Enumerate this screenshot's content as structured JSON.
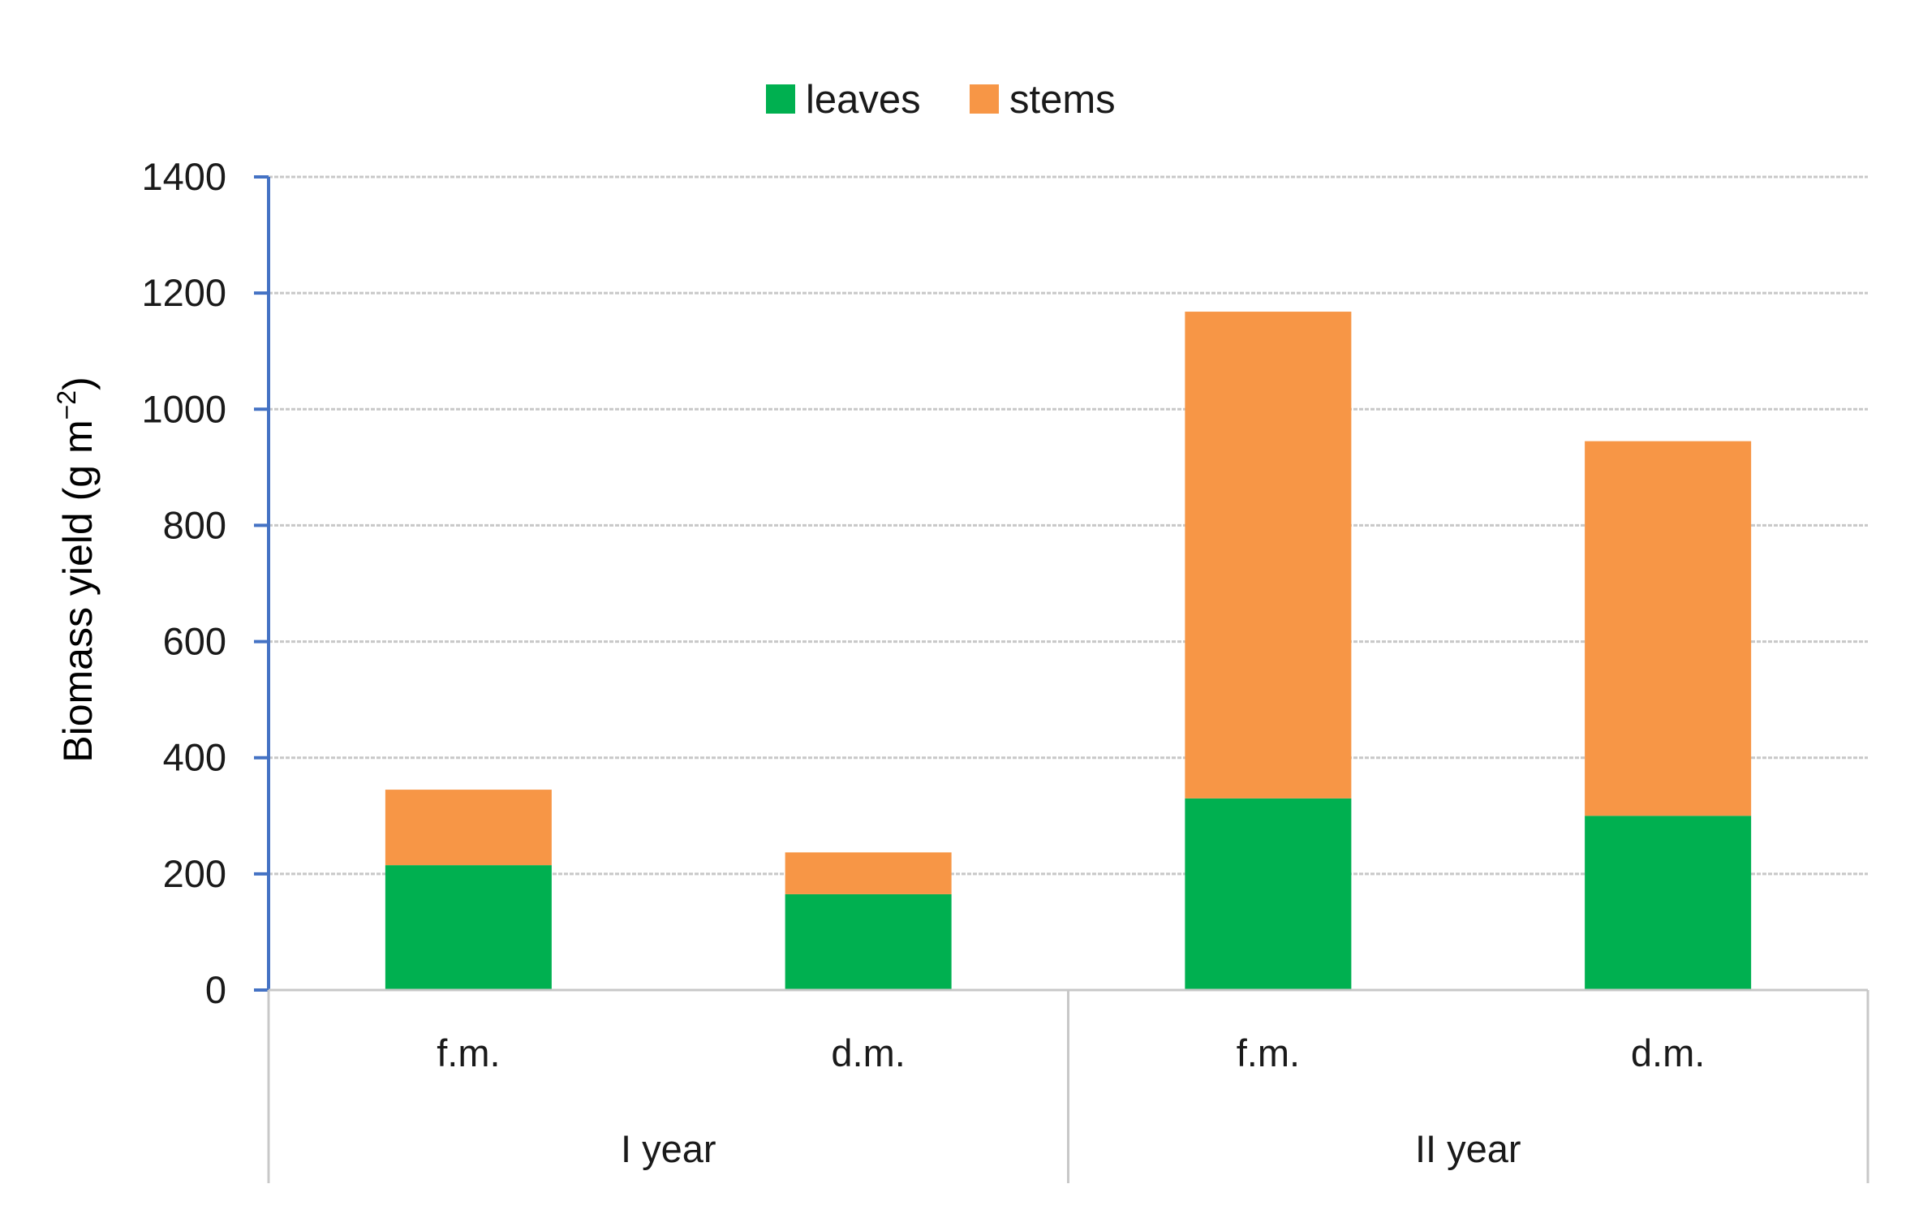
{
  "chart_data": {
    "type": "bar",
    "stacked": true,
    "groups": [
      {
        "label": "I year",
        "categories": [
          "f.m.",
          "d.m."
        ]
      },
      {
        "label": "II year",
        "categories": [
          "f.m.",
          "d.m."
        ]
      }
    ],
    "categories": [
      "f.m.",
      "d.m.",
      "f.m.",
      "d.m."
    ],
    "series": [
      {
        "name": "leaves",
        "color": "#00b050",
        "values": [
          215,
          165,
          330,
          300
        ]
      },
      {
        "name": "stems",
        "color": "#f79646",
        "values": [
          130,
          72,
          838,
          645
        ]
      }
    ],
    "ylabel": {
      "text": "Biomass yield (g m",
      "superscript": "−2",
      "suffix": ")"
    },
    "ylim": [
      0,
      1400
    ],
    "yticks": [
      "0",
      "200",
      "400",
      "600",
      "800",
      "1000",
      "1200",
      "1400"
    ],
    "ytick_values": [
      0,
      200,
      400,
      600,
      800,
      1000,
      1200,
      1400
    ],
    "grid": true,
    "legend_position": "top-center"
  }
}
